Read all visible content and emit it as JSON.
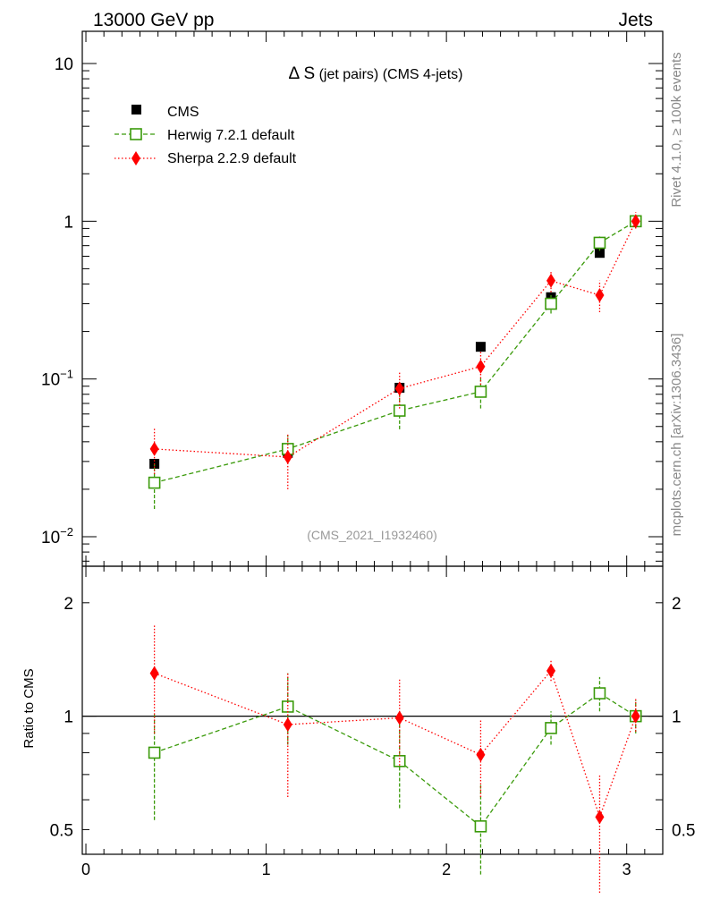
{
  "header": {
    "left": "13000 GeV pp",
    "right": "Jets"
  },
  "side_labels": {
    "rivet": "Rivet 4.1.0, ≥ 100k events",
    "mcplots": "mcplots.cern.ch [arXiv:1306.3436]"
  },
  "plot": {
    "title_symbol": "Δ S",
    "title_rest": " (jet pairs) (CMS 4-jets)",
    "analysis_id": "(CMS_2021_I1932460)",
    "ratio_ylabel": "Ratio to CMS"
  },
  "legend": {
    "cms": "CMS",
    "herwig": "Herwig 7.2.1 default",
    "sherpa": "Sherpa 2.2.9 default"
  },
  "colors": {
    "cms": "#000000",
    "herwig": "#3a9a0a",
    "sherpa": "#ff0000"
  },
  "chart_data": [
    {
      "type": "scatter",
      "panel": "main",
      "yscale": "log",
      "xlim": [
        -0.02,
        3.2
      ],
      "ylim": [
        0.0065,
        16
      ],
      "x_ticks": [
        0,
        1,
        2,
        3
      ],
      "y_ticks": [
        {
          "value": 10,
          "label": "10",
          "exp": ""
        },
        {
          "value": 1,
          "label": "1",
          "exp": ""
        },
        {
          "value": 0.1,
          "label": "10",
          "exp": "−1"
        },
        {
          "value": 0.01,
          "label": "10",
          "exp": "−2"
        }
      ],
      "series": [
        {
          "name": "CMS",
          "marker": "filled-square",
          "x": [
            0.38,
            1.12,
            1.74,
            2.19,
            2.58,
            2.85,
            3.05
          ],
          "y": [
            0.029,
            0.034,
            0.088,
            0.16,
            0.33,
            0.63,
            1.0
          ],
          "err_lo": [
            0.002,
            0.002,
            0.004,
            0.006,
            0.015,
            0.03,
            0.03
          ],
          "err_hi": [
            0.002,
            0.002,
            0.004,
            0.006,
            0.015,
            0.03,
            0.03
          ]
        },
        {
          "name": "Herwig 7.2.1 default",
          "marker": "open-square",
          "line": "dashed",
          "x": [
            0.38,
            1.12,
            1.74,
            2.19,
            2.58,
            2.85,
            3.05
          ],
          "y": [
            0.022,
            0.036,
            0.063,
            0.083,
            0.3,
            0.73,
            1.0
          ],
          "err_lo": [
            0.007,
            0.007,
            0.015,
            0.018,
            0.04,
            0.08,
            0.1
          ],
          "err_hi": [
            0.007,
            0.008,
            0.016,
            0.018,
            0.04,
            0.08,
            0.1
          ]
        },
        {
          "name": "Sherpa 2.2.9 default",
          "marker": "diamond",
          "line": "dotted",
          "x": [
            0.38,
            1.12,
            1.74,
            2.19,
            2.58,
            2.85,
            3.05
          ],
          "y": [
            0.036,
            0.032,
            0.087,
            0.12,
            0.42,
            0.34,
            1.0
          ],
          "err_lo": [
            0.011,
            0.012,
            0.022,
            0.028,
            0.065,
            0.075,
            0.1
          ],
          "err_hi": [
            0.013,
            0.013,
            0.024,
            0.03,
            0.065,
            0.08,
            0.14
          ]
        }
      ]
    },
    {
      "type": "scatter",
      "panel": "ratio",
      "yscale": "log",
      "xlabel": "",
      "ylabel": "Ratio to CMS",
      "xlim": [
        -0.02,
        3.2
      ],
      "ylim": [
        0.43,
        2.5
      ],
      "x_ticks": [
        0,
        1,
        2,
        3
      ],
      "y_ticks": [
        {
          "value": 2,
          "label": "2"
        },
        {
          "value": 1,
          "label": "1"
        },
        {
          "value": 0.5,
          "label": "0.5"
        }
      ],
      "reference_line": 1,
      "series": [
        {
          "name": "Herwig 7.2.1 default",
          "marker": "open-square",
          "line": "dashed",
          "x": [
            0.38,
            1.12,
            1.74,
            2.19,
            2.58,
            2.85,
            3.05
          ],
          "y": [
            0.8,
            1.06,
            0.76,
            0.51,
            0.93,
            1.15,
            1.0
          ],
          "err_lo": [
            0.27,
            0.22,
            0.19,
            0.13,
            0.09,
            0.12,
            0.1
          ],
          "err_hi": [
            0.22,
            0.24,
            0.19,
            0.15,
            0.1,
            0.12,
            0.1
          ]
        },
        {
          "name": "Sherpa 2.2.9 default",
          "marker": "diamond",
          "line": "dotted",
          "x": [
            0.38,
            1.12,
            1.74,
            2.19,
            2.58,
            2.85,
            3.05
          ],
          "y": [
            1.3,
            0.95,
            0.99,
            0.79,
            1.32,
            0.54,
            1.0
          ],
          "err_lo": [
            0.4,
            0.34,
            0.25,
            0.18,
            0.08,
            0.2,
            0.09
          ],
          "err_hi": [
            0.45,
            0.36,
            0.27,
            0.19,
            0.09,
            0.16,
            0.11
          ]
        }
      ]
    }
  ]
}
